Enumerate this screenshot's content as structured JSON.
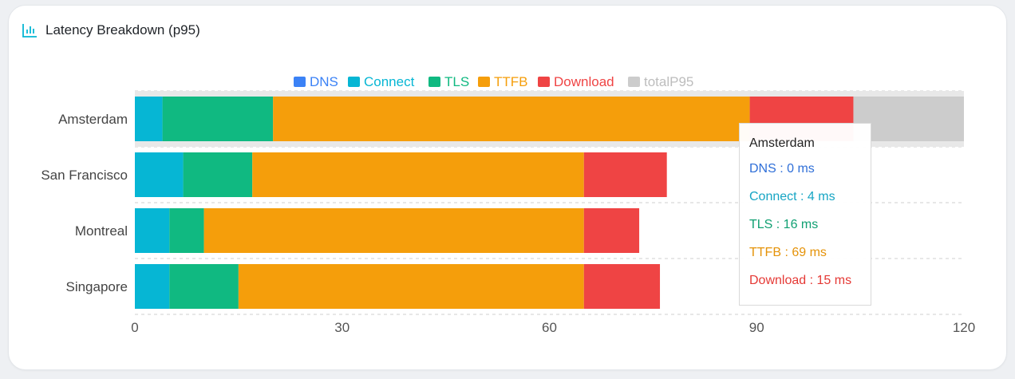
{
  "header": {
    "title": "Latency Breakdown (p95)",
    "icon": "bar-chart-icon"
  },
  "colors": {
    "DNS": "#3b82f6",
    "Connect": "#06b6d4",
    "TLS": "#10b981",
    "TTFB": "#f59e0b",
    "Download": "#ef4444",
    "totalP95": "#cccccc"
  },
  "chart_data": {
    "type": "bar",
    "orientation": "horizontal",
    "stacked": true,
    "categories": [
      "Amsterdam",
      "San Francisco",
      "Montreal",
      "Singapore"
    ],
    "series": [
      {
        "name": "DNS",
        "values": [
          0,
          0,
          0,
          0
        ]
      },
      {
        "name": "Connect",
        "values": [
          4,
          7,
          5,
          5
        ]
      },
      {
        "name": "TLS",
        "values": [
          16,
          10,
          5,
          10
        ]
      },
      {
        "name": "TTFB",
        "values": [
          69,
          48,
          55,
          50
        ]
      },
      {
        "name": "Download",
        "values": [
          15,
          12,
          8,
          11
        ]
      },
      {
        "name": "totalP95",
        "values": [
          16,
          0,
          0,
          0
        ]
      }
    ],
    "xlim": [
      0,
      120
    ],
    "xticks": [
      0,
      30,
      60,
      90,
      120
    ],
    "grid": "dashed vertical-category lines",
    "legend": "top-center",
    "highlighted_category": "Amsterdam"
  },
  "tooltip": {
    "title": "Amsterdam",
    "rows": [
      {
        "label": "DNS : 0 ms",
        "color": "#2f6fd8"
      },
      {
        "label": "Connect : 4 ms",
        "color": "#16a5c4"
      },
      {
        "label": "TLS : 16 ms",
        "color": "#10a072"
      },
      {
        "label": "TTFB : 69 ms",
        "color": "#e59309"
      },
      {
        "label": "Download : 15 ms",
        "color": "#e53935"
      }
    ]
  }
}
